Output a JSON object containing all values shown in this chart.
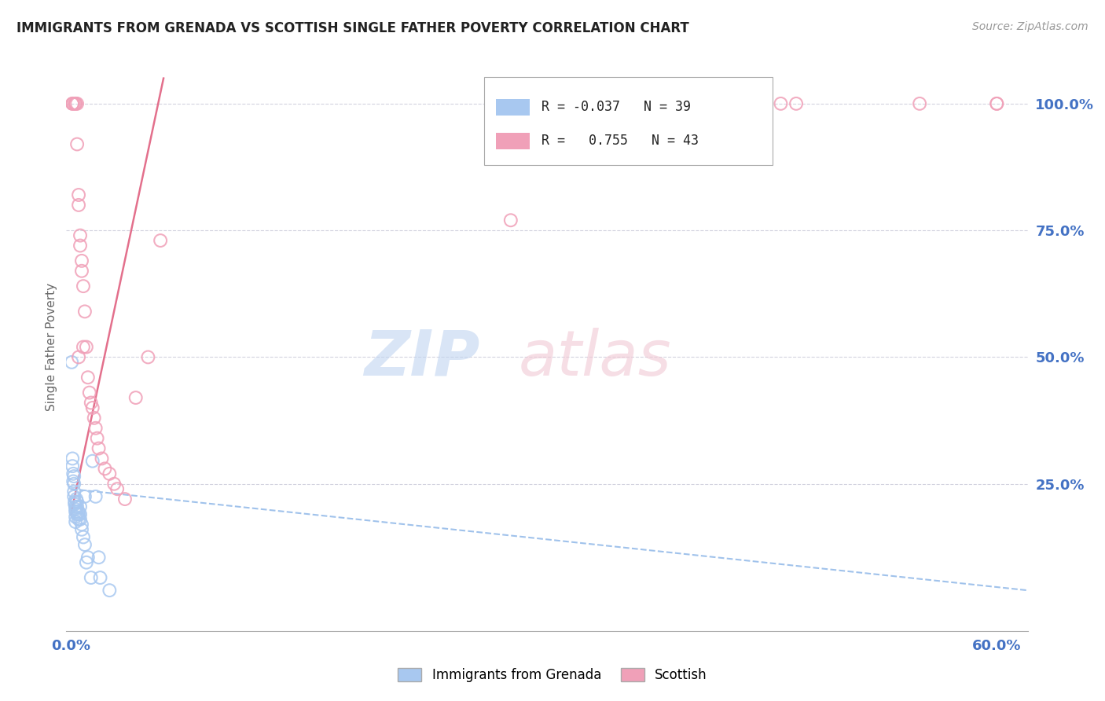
{
  "title": "IMMIGRANTS FROM GRENADA VS SCOTTISH SINGLE FATHER POVERTY CORRELATION CHART",
  "source": "Source: ZipAtlas.com",
  "ylabel": "Single Father Poverty",
  "legend_label1": "Immigrants from Grenada",
  "legend_label2": "Scottish",
  "R1": -0.037,
  "N1": 39,
  "R2": 0.755,
  "N2": 43,
  "color_grenada": "#a8c8f0",
  "color_scottish": "#f0a0b8",
  "color_grenada_line": "#90b8e8",
  "color_scottish_line": "#e06080",
  "color_axis_labels": "#4472c4",
  "xlim": [
    -0.003,
    0.62
  ],
  "ylim": [
    -0.04,
    1.08
  ],
  "grenada_x": [
    0.0005,
    0.001,
    0.001,
    0.0015,
    0.0015,
    0.002,
    0.002,
    0.002,
    0.002,
    0.0025,
    0.0025,
    0.003,
    0.003,
    0.003,
    0.003,
    0.003,
    0.0035,
    0.004,
    0.004,
    0.004,
    0.005,
    0.005,
    0.005,
    0.006,
    0.006,
    0.006,
    0.007,
    0.007,
    0.008,
    0.009,
    0.009,
    0.01,
    0.011,
    0.013,
    0.014,
    0.016,
    0.018,
    0.019,
    0.025
  ],
  "grenada_y": [
    0.49,
    0.3,
    0.285,
    0.27,
    0.255,
    0.265,
    0.25,
    0.235,
    0.225,
    0.215,
    0.21,
    0.205,
    0.2,
    0.195,
    0.185,
    0.175,
    0.22,
    0.215,
    0.205,
    0.19,
    0.195,
    0.19,
    0.18,
    0.205,
    0.19,
    0.18,
    0.17,
    0.16,
    0.145,
    0.13,
    0.225,
    0.095,
    0.105,
    0.065,
    0.295,
    0.225,
    0.105,
    0.065,
    0.04
  ],
  "scottish_x": [
    0.001,
    0.001,
    0.002,
    0.003,
    0.003,
    0.004,
    0.004,
    0.005,
    0.005,
    0.006,
    0.006,
    0.007,
    0.007,
    0.008,
    0.009,
    0.01,
    0.011,
    0.012,
    0.013,
    0.014,
    0.015,
    0.016,
    0.017,
    0.018,
    0.02,
    0.022,
    0.025,
    0.028,
    0.03,
    0.035,
    0.042,
    0.05,
    0.058,
    0.42,
    0.44,
    0.46,
    0.47,
    0.55,
    0.6,
    0.6,
    0.285,
    0.005,
    0.008
  ],
  "scottish_y": [
    1.0,
    1.0,
    1.0,
    1.0,
    1.0,
    1.0,
    0.92,
    0.82,
    0.8,
    0.74,
    0.72,
    0.69,
    0.67,
    0.64,
    0.59,
    0.52,
    0.46,
    0.43,
    0.41,
    0.4,
    0.38,
    0.36,
    0.34,
    0.32,
    0.3,
    0.28,
    0.27,
    0.25,
    0.24,
    0.22,
    0.42,
    0.5,
    0.73,
    1.0,
    1.0,
    1.0,
    1.0,
    1.0,
    1.0,
    1.0,
    0.77,
    0.5,
    0.52
  ],
  "scottish_trend_x": [
    0.0,
    0.06
  ],
  "scottish_trend_y": [
    0.19,
    1.05
  ],
  "grenada_trend_x": [
    0.0,
    0.62
  ],
  "grenada_trend_y": [
    0.24,
    0.04
  ]
}
